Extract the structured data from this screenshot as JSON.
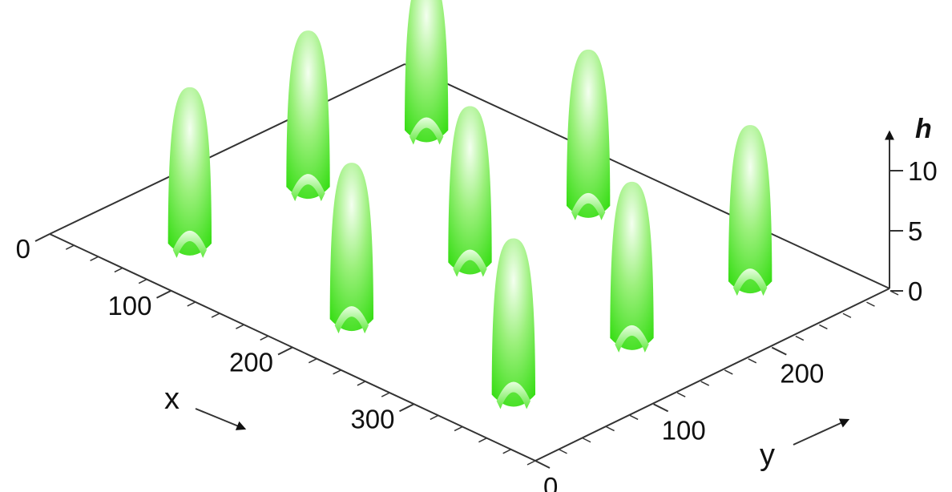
{
  "chart_data": {
    "type": "surface",
    "surface_description": "array of touching spherical caps on a square lattice",
    "surface_color": "#33dd11",
    "grid_columns_x": 3,
    "grid_rows_y": 3,
    "x_axis": {
      "label": "x",
      "ticks": [
        0,
        100,
        200,
        300
      ],
      "range": [
        0,
        400
      ]
    },
    "y_axis": {
      "label": "y",
      "ticks": [
        0,
        100,
        200
      ],
      "range": [
        0,
        300
      ]
    },
    "h_axis": {
      "label": "h",
      "ticks": [
        0,
        5,
        10
      ],
      "range": [
        0,
        13
      ]
    },
    "x_tick_labels": [
      "0",
      "100",
      "200",
      "300"
    ],
    "y_tick_labels": [
      "0",
      "100",
      "200"
    ],
    "h_tick_labels": [
      "0",
      "5",
      "10"
    ]
  }
}
